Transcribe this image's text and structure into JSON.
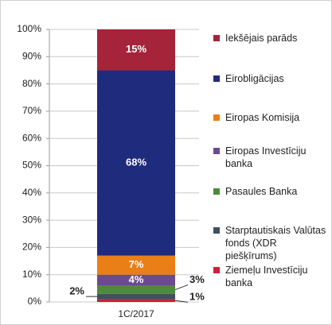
{
  "chart_data": {
    "type": "stacked_bar",
    "categories": [
      "1C/2017"
    ],
    "ylim": [
      0,
      100
    ],
    "yticks": [
      {
        "value": 0,
        "label": "0%"
      },
      {
        "value": 10,
        "label": "10%"
      },
      {
        "value": 20,
        "label": "20%"
      },
      {
        "value": 30,
        "label": "30%"
      },
      {
        "value": 40,
        "label": "40%"
      },
      {
        "value": 50,
        "label": "50%"
      },
      {
        "value": 60,
        "label": "60%"
      },
      {
        "value": 70,
        "label": "70%"
      },
      {
        "value": 80,
        "label": "80%"
      },
      {
        "value": 90,
        "label": "90%"
      },
      {
        "value": 100,
        "label": "100%"
      }
    ],
    "grid": true,
    "legend": "right",
    "series": [
      {
        "name": "Iekšējais parāds",
        "color": "#a5243a",
        "values": [
          15
        ],
        "value_labels": [
          "15%"
        ]
      },
      {
        "name": "Eirobligācijas",
        "color": "#1f2b7c",
        "values": [
          68
        ],
        "value_labels": [
          "68%"
        ]
      },
      {
        "name": "Eiropas Komisija",
        "color": "#ea7e17",
        "values": [
          7
        ],
        "value_labels": [
          "7%"
        ]
      },
      {
        "name": "Eiropas Investīciju banka",
        "color": "#6b4a93",
        "values": [
          4
        ],
        "value_labels": [
          "4%"
        ]
      },
      {
        "name": "Pasaules Banka",
        "color": "#4d8a3d",
        "values": [
          3
        ],
        "value_labels": [
          "3%"
        ]
      },
      {
        "name": "Starptautiskais Valūtas fonds (XDR piešķīrums)",
        "color": "#3d5162",
        "values": [
          2
        ],
        "value_labels": [
          "2%"
        ]
      },
      {
        "name": "Ziemeļu Investīciju banka",
        "color": "#d21d35",
        "values": [
          1
        ],
        "value_labels": [
          "1%"
        ]
      }
    ]
  }
}
